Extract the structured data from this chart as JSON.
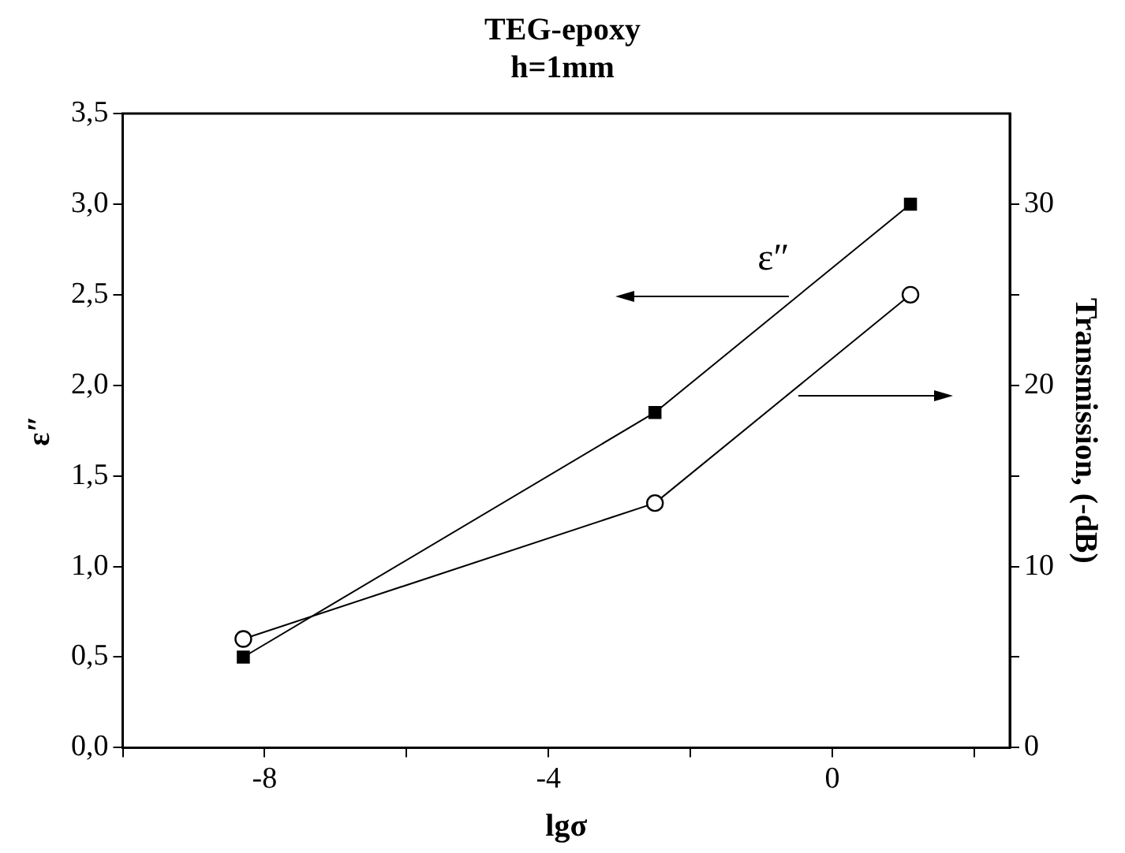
{
  "chart_data": {
    "type": "line",
    "title": "TEG-epoxy",
    "subtitle": "h=1mm",
    "xlabel": "lgσ",
    "ylabel": "ε″",
    "y2label": "Transmission, (-dB)",
    "xlim": [
      -10,
      2.5
    ],
    "xticks": [
      {
        "value": -10,
        "label": null
      },
      -8,
      {
        "value": -6,
        "label": null
      },
      -4,
      {
        "value": -2,
        "label": null
      },
      0,
      {
        "value": 2,
        "label": null
      }
    ],
    "ylim": [
      0,
      3.5
    ],
    "yticks": [
      {
        "value": 0,
        "label": "0,0"
      },
      {
        "value": 0.5,
        "label": "0,5"
      },
      {
        "value": 1,
        "label": "1,0"
      },
      {
        "value": 1.5,
        "label": "1,5"
      },
      {
        "value": 2,
        "label": "2,0"
      },
      {
        "value": 2.5,
        "label": "2,5"
      },
      {
        "value": 3,
        "label": "3,0"
      },
      {
        "value": 3.5,
        "label": "3,5"
      }
    ],
    "y2lim": [
      0,
      35
    ],
    "y2ticks": [
      0,
      {
        "value": 5,
        "label": null
      },
      10,
      {
        "value": 15,
        "label": null
      },
      20,
      {
        "value": 25,
        "label": null
      },
      30
    ],
    "grid": false,
    "legend": false,
    "series": [
      {
        "name": "ε″",
        "color": "#000000",
        "marker": "square",
        "x": [
          -8.3,
          -2.5,
          1.1
        ],
        "values": [
          0.5,
          1.85,
          3.0
        ]
      },
      {
        "color": "#000000",
        "marker": "circle",
        "axis": "y2",
        "x": [
          -8.3,
          -2.5,
          1.1
        ],
        "values": [
          6,
          13.5,
          25
        ]
      }
    ]
  }
}
